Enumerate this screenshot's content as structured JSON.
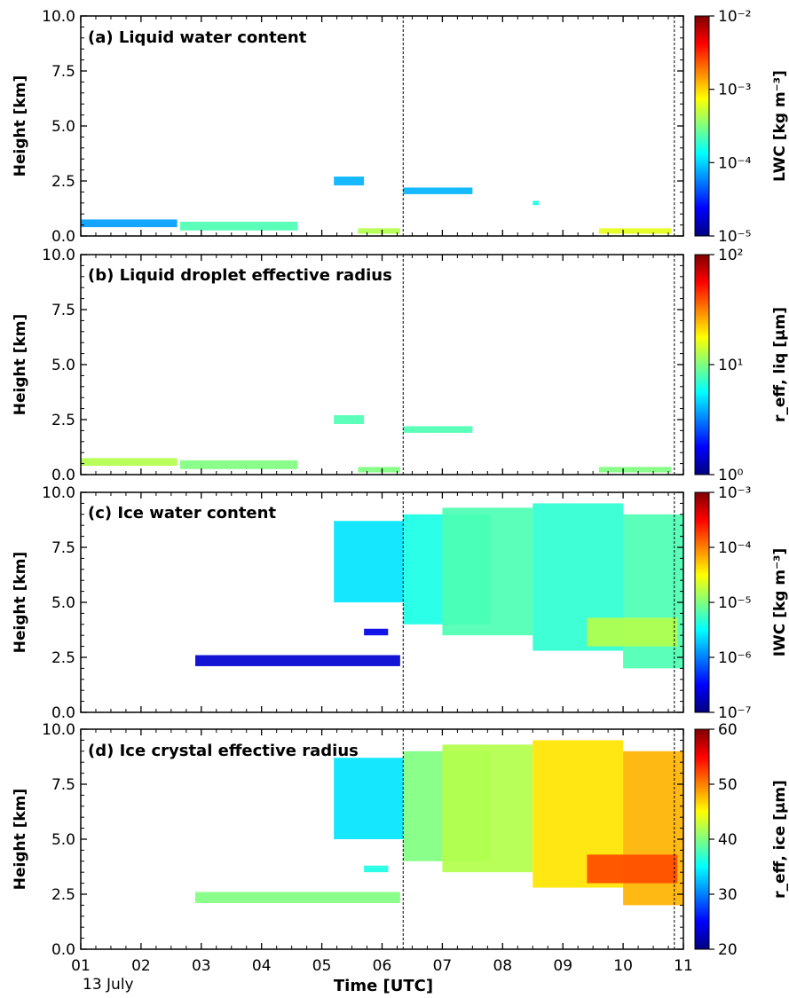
{
  "chart_data": {
    "type": "heatmap",
    "shared_x": {
      "label": "Time [UTC]",
      "date_label": "13 July",
      "range": [
        1,
        11
      ],
      "ticks": [
        1,
        2,
        3,
        4,
        5,
        6,
        7,
        8,
        9,
        10,
        11
      ],
      "tick_labels": [
        "01",
        "02",
        "03",
        "04",
        "05",
        "06",
        "07",
        "08",
        "09",
        "10",
        "11"
      ]
    },
    "vertical_markers_utc": [
      6.35,
      10.85
    ],
    "panels": [
      {
        "id": "a",
        "title": "(a) Liquid water content",
        "ylabel": "Height [km]",
        "ylim": [
          0,
          10
        ],
        "yticks": [
          "0.0",
          "2.5",
          "5.0",
          "7.5",
          "10.0"
        ],
        "colorbar": {
          "label": "LWC [kg m⁻³]",
          "scale": "log",
          "range": [
            1e-05,
            0.01
          ],
          "ticks": [
            "10⁻⁵",
            "10⁻⁴",
            "10⁻³",
            "10⁻²"
          ]
        },
        "regions": [
          {
            "t0": 1.0,
            "t1": 2.6,
            "h0": 0.4,
            "h1": 0.75,
            "level": 0.28
          },
          {
            "t0": 2.65,
            "t1": 4.6,
            "h0": 0.25,
            "h1": 0.65,
            "level": 0.45
          },
          {
            "t0": 5.2,
            "t1": 5.7,
            "h0": 2.3,
            "h1": 2.7,
            "level": 0.3
          },
          {
            "t0": 5.6,
            "t1": 6.3,
            "h0": 0.1,
            "h1": 0.35,
            "level": 0.55
          },
          {
            "t0": 6.35,
            "t1": 7.5,
            "h0": 1.9,
            "h1": 2.2,
            "level": 0.3
          },
          {
            "t0": 8.5,
            "t1": 8.6,
            "h0": 1.4,
            "h1": 1.6,
            "level": 0.4
          },
          {
            "t0": 9.6,
            "t1": 10.8,
            "h0": 0.1,
            "h1": 0.35,
            "level": 0.6
          }
        ]
      },
      {
        "id": "b",
        "title": "(b) Liquid droplet effective radius",
        "ylabel": "Height [km]",
        "ylim": [
          0,
          10
        ],
        "yticks": [
          "0.0",
          "2.5",
          "5.0",
          "7.5",
          "10.0"
        ],
        "colorbar": {
          "label": "r_eff, liq [μm]",
          "scale": "log",
          "range": [
            1,
            100
          ],
          "ticks": [
            "10⁰",
            "10¹",
            "10²"
          ]
        },
        "regions": [
          {
            "t0": 1.0,
            "t1": 2.6,
            "h0": 0.4,
            "h1": 0.75,
            "level": 0.55
          },
          {
            "t0": 2.65,
            "t1": 4.6,
            "h0": 0.25,
            "h1": 0.65,
            "level": 0.5
          },
          {
            "t0": 5.2,
            "t1": 5.7,
            "h0": 2.3,
            "h1": 2.7,
            "level": 0.45
          },
          {
            "t0": 5.6,
            "t1": 6.3,
            "h0": 0.1,
            "h1": 0.35,
            "level": 0.5
          },
          {
            "t0": 6.35,
            "t1": 7.5,
            "h0": 1.9,
            "h1": 2.2,
            "level": 0.45
          },
          {
            "t0": 9.6,
            "t1": 10.8,
            "h0": 0.1,
            "h1": 0.35,
            "level": 0.5
          }
        ]
      },
      {
        "id": "c",
        "title": "(c) Ice water content",
        "ylabel": "Height [km]",
        "ylim": [
          0,
          10
        ],
        "yticks": [
          "0.0",
          "2.5",
          "5.0",
          "7.5",
          "10.0"
        ],
        "colorbar": {
          "label": "IWC [kg m⁻³]",
          "scale": "log",
          "range": [
            1e-07,
            0.001
          ],
          "ticks": [
            "10⁻⁷",
            "10⁻⁶",
            "10⁻⁵",
            "10⁻⁴",
            "10⁻³"
          ]
        },
        "regions": [
          {
            "t0": 5.2,
            "t1": 6.35,
            "h0": 5.0,
            "h1": 8.7,
            "level": 0.35
          },
          {
            "t0": 6.35,
            "t1": 7.8,
            "h0": 4.0,
            "h1": 9.0,
            "level": 0.4
          },
          {
            "t0": 7.0,
            "t1": 8.5,
            "h0": 3.5,
            "h1": 9.3,
            "level": 0.45
          },
          {
            "t0": 8.5,
            "t1": 10.0,
            "h0": 2.8,
            "h1": 9.5,
            "level": 0.42
          },
          {
            "t0": 10.0,
            "t1": 11.0,
            "h0": 2.0,
            "h1": 9.0,
            "level": 0.45
          },
          {
            "t0": 9.4,
            "t1": 10.9,
            "h0": 3.0,
            "h1": 4.3,
            "level": 0.55
          },
          {
            "t0": 2.9,
            "t1": 6.3,
            "h0": 2.1,
            "h1": 2.6,
            "level": 0.08
          },
          {
            "t0": 5.7,
            "t1": 6.1,
            "h0": 3.5,
            "h1": 3.8,
            "level": 0.1
          }
        ]
      },
      {
        "id": "d",
        "title": "(d) Ice crystal effective radius",
        "ylabel": "Height [km]",
        "ylim": [
          0,
          10
        ],
        "yticks": [
          "0.0",
          "2.5",
          "5.0",
          "7.5",
          "10.0"
        ],
        "colorbar": {
          "label": "r_eff, ice [μm]",
          "scale": "linear",
          "range": [
            20,
            60
          ],
          "ticks": [
            "20",
            "30",
            "40",
            "50",
            "60"
          ]
        },
        "regions": [
          {
            "t0": 5.2,
            "t1": 6.35,
            "h0": 5.0,
            "h1": 8.7,
            "level": 0.35
          },
          {
            "t0": 6.35,
            "t1": 7.8,
            "h0": 4.0,
            "h1": 9.0,
            "level": 0.5
          },
          {
            "t0": 7.0,
            "t1": 8.5,
            "h0": 3.5,
            "h1": 9.3,
            "level": 0.55
          },
          {
            "t0": 8.5,
            "t1": 10.0,
            "h0": 2.8,
            "h1": 9.5,
            "level": 0.65
          },
          {
            "t0": 10.0,
            "t1": 11.0,
            "h0": 2.0,
            "h1": 9.0,
            "level": 0.7
          },
          {
            "t0": 9.4,
            "t1": 10.9,
            "h0": 3.0,
            "h1": 4.3,
            "level": 0.8
          },
          {
            "t0": 2.9,
            "t1": 6.3,
            "h0": 2.1,
            "h1": 2.6,
            "level": 0.5
          },
          {
            "t0": 5.7,
            "t1": 6.1,
            "h0": 3.5,
            "h1": 3.8,
            "level": 0.4
          }
        ]
      }
    ]
  }
}
